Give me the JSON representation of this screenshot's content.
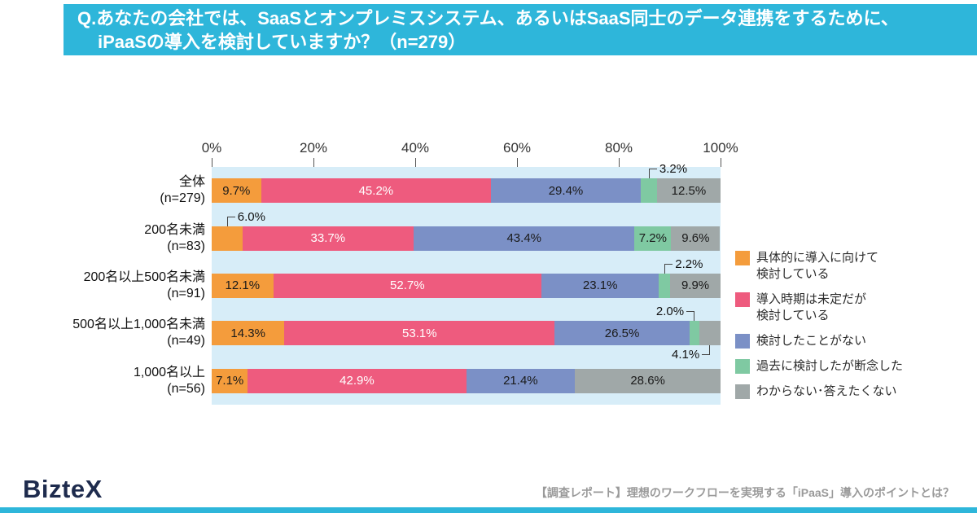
{
  "banner": {
    "line1": "Q.あなたの会社では、SaaSとオンプレミスシステム、あるいはSaaS同士のデータ連携をするために、",
    "line2": "iPaaSの導入を検討していますか？（n=279）",
    "bg_color": "#2EB6DA"
  },
  "chart_data": {
    "type": "bar",
    "variant": "horizontal-stacked",
    "title": "Q.あなたの会社では、SaaSとオンプレミスシステム、あるいはSaaS同士のデータ連携をするために、iPaaSの導入を検討していますか？（n=279）",
    "x_range": [
      0,
      100
    ],
    "x_ticks": [
      "0%",
      "20%",
      "40%",
      "60%",
      "80%",
      "100%"
    ],
    "grid": "off",
    "legend_position": "right",
    "plot_bg": "#D7EDF8",
    "series": [
      {
        "name": "具体的に導入に向けて検討している",
        "color": "#F49C3C",
        "label_color": "#1A1A1A"
      },
      {
        "name": "導入時期は未定だが検討している",
        "color": "#EE5B7E",
        "label_color": "#FFFFFF"
      },
      {
        "name": "検討したことがない",
        "color": "#7B90C6",
        "label_color": "#1A1A1A"
      },
      {
        "name": "過去に検討したが断念した",
        "color": "#7FC9A2",
        "label_color": "#1A1A1A"
      },
      {
        "name": "わからない･答えたくない",
        "color": "#A0A8A8",
        "label_color": "#1A1A1A"
      }
    ],
    "rows": [
      {
        "label": "全体",
        "n": "(n=279)",
        "values": [
          9.7,
          45.2,
          29.4,
          3.2,
          12.5
        ],
        "display": [
          "9.7%",
          "45.2%",
          "29.4%",
          "3.2%",
          "12.5%"
        ],
        "label_pos": [
          "inside",
          "inside",
          "inside",
          "above",
          "inside"
        ]
      },
      {
        "label": "200名未満",
        "n": "(n=83)",
        "values": [
          6.0,
          33.7,
          43.4,
          7.2,
          9.6
        ],
        "display": [
          "6.0%",
          "33.7%",
          "43.4%",
          "7.2%",
          "9.6%"
        ],
        "label_pos": [
          "above",
          "inside",
          "inside",
          "inside",
          "inside"
        ]
      },
      {
        "label": "200名以上500名未満",
        "n": "(n=91)",
        "values": [
          12.1,
          52.7,
          23.1,
          2.2,
          9.9
        ],
        "display": [
          "12.1%",
          "52.7%",
          "23.1%",
          "2.2%",
          "9.9%"
        ],
        "label_pos": [
          "inside",
          "inside",
          "inside",
          "above",
          "inside"
        ]
      },
      {
        "label": "500名以上1,000名未満",
        "n": "(n=49)",
        "values": [
          14.3,
          53.1,
          26.5,
          2.0,
          4.1
        ],
        "display": [
          "14.3%",
          "53.1%",
          "26.5%",
          "2.0%",
          "4.1%"
        ],
        "label_pos": [
          "inside",
          "inside",
          "inside",
          "above",
          "below"
        ]
      },
      {
        "label": "1,000名以上",
        "n": "(n=56)",
        "values": [
          7.1,
          42.9,
          21.4,
          0,
          28.6
        ],
        "display": [
          "7.1%",
          "42.9%",
          "21.4%",
          "",
          "28.6%"
        ],
        "label_pos": [
          "inside",
          "inside",
          "inside",
          "none",
          "inside"
        ]
      }
    ],
    "legend": [
      {
        "lines": [
          "具体的に導入に向けて",
          "検討している"
        ]
      },
      {
        "lines": [
          "導入時期は未定だが",
          "検討している"
        ]
      },
      {
        "lines": [
          "検討したことがない"
        ]
      },
      {
        "lines": [
          "過去に検討したが断念した"
        ]
      },
      {
        "lines": [
          "わからない･答えたくない"
        ]
      }
    ]
  },
  "footer": {
    "logo_text": "BizteX",
    "logo_color": "#1E2B4D",
    "tagline": "【調査レポート】理想のワークフローを実現する「iPaaS」導入のポイントとは？"
  }
}
